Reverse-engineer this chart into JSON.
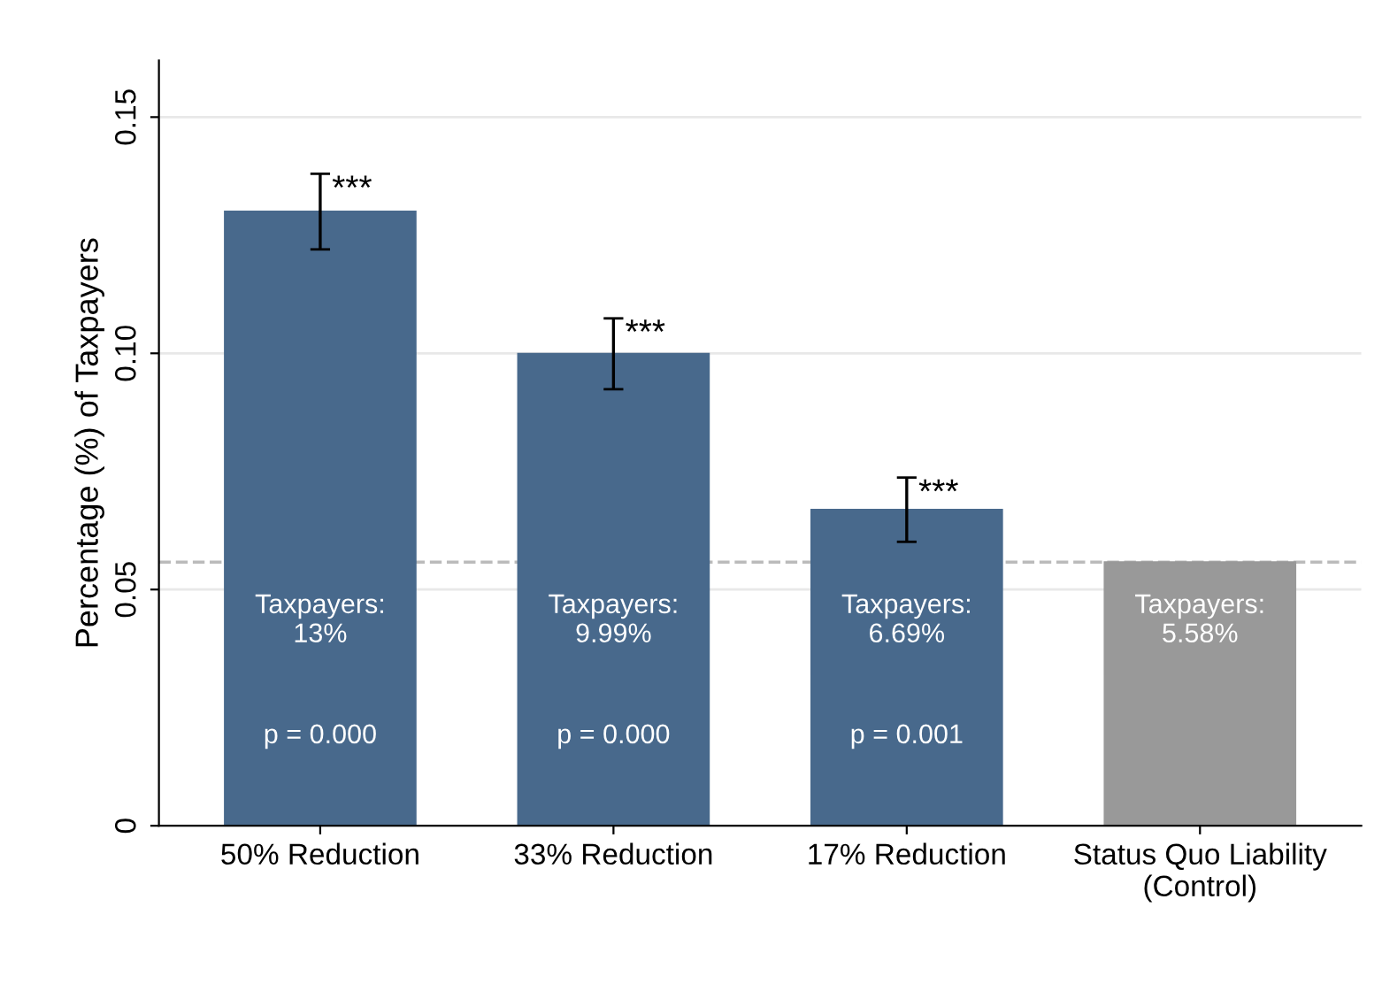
{
  "chart_data": {
    "type": "bar",
    "ylabel": "Percentage (%) of Taxpayers",
    "categories": [
      "50% Reduction",
      "33% Reduction",
      "17% Reduction",
      "Status Quo Liability\n(Control)"
    ],
    "values": [
      0.13,
      0.0999,
      0.0669,
      0.0558
    ],
    "colors": [
      "#48698c",
      "#48698c",
      "#48698c",
      "#999999"
    ],
    "errors": [
      0.008,
      0.0075,
      0.0068,
      null
    ],
    "value_labels": [
      "Taxpayers:\n13%",
      "Taxpayers:\n9.99%",
      "Taxpayers:\n6.69%",
      "Taxpayers:\n5.58%"
    ],
    "annotations": [
      {
        "text": "***",
        "x": "50% Reduction",
        "y": 0.138
      },
      {
        "text": "***",
        "x": "33% Reduction",
        "y": 0.1075
      },
      {
        "text": "***",
        "x": "17% Reduction",
        "y": 0.0737
      },
      "p = 0.000",
      "p = 0.000",
      "p = 0.001"
    ],
    "ref_lines": [
      {
        "axis": "y",
        "value": 0.0558,
        "color": "#bbbbbb",
        "line_style": "dashed"
      }
    ],
    "ylim": [
      0,
      0.162
    ],
    "yticks": [
      {
        "value": 0,
        "label": "0"
      },
      {
        "value": 0.05,
        "label": "0.05"
      },
      {
        "value": 0.1,
        "label": "0.10"
      },
      {
        "value": 0.15,
        "label": "0.15"
      }
    ],
    "grid": "y",
    "legend": false
  }
}
